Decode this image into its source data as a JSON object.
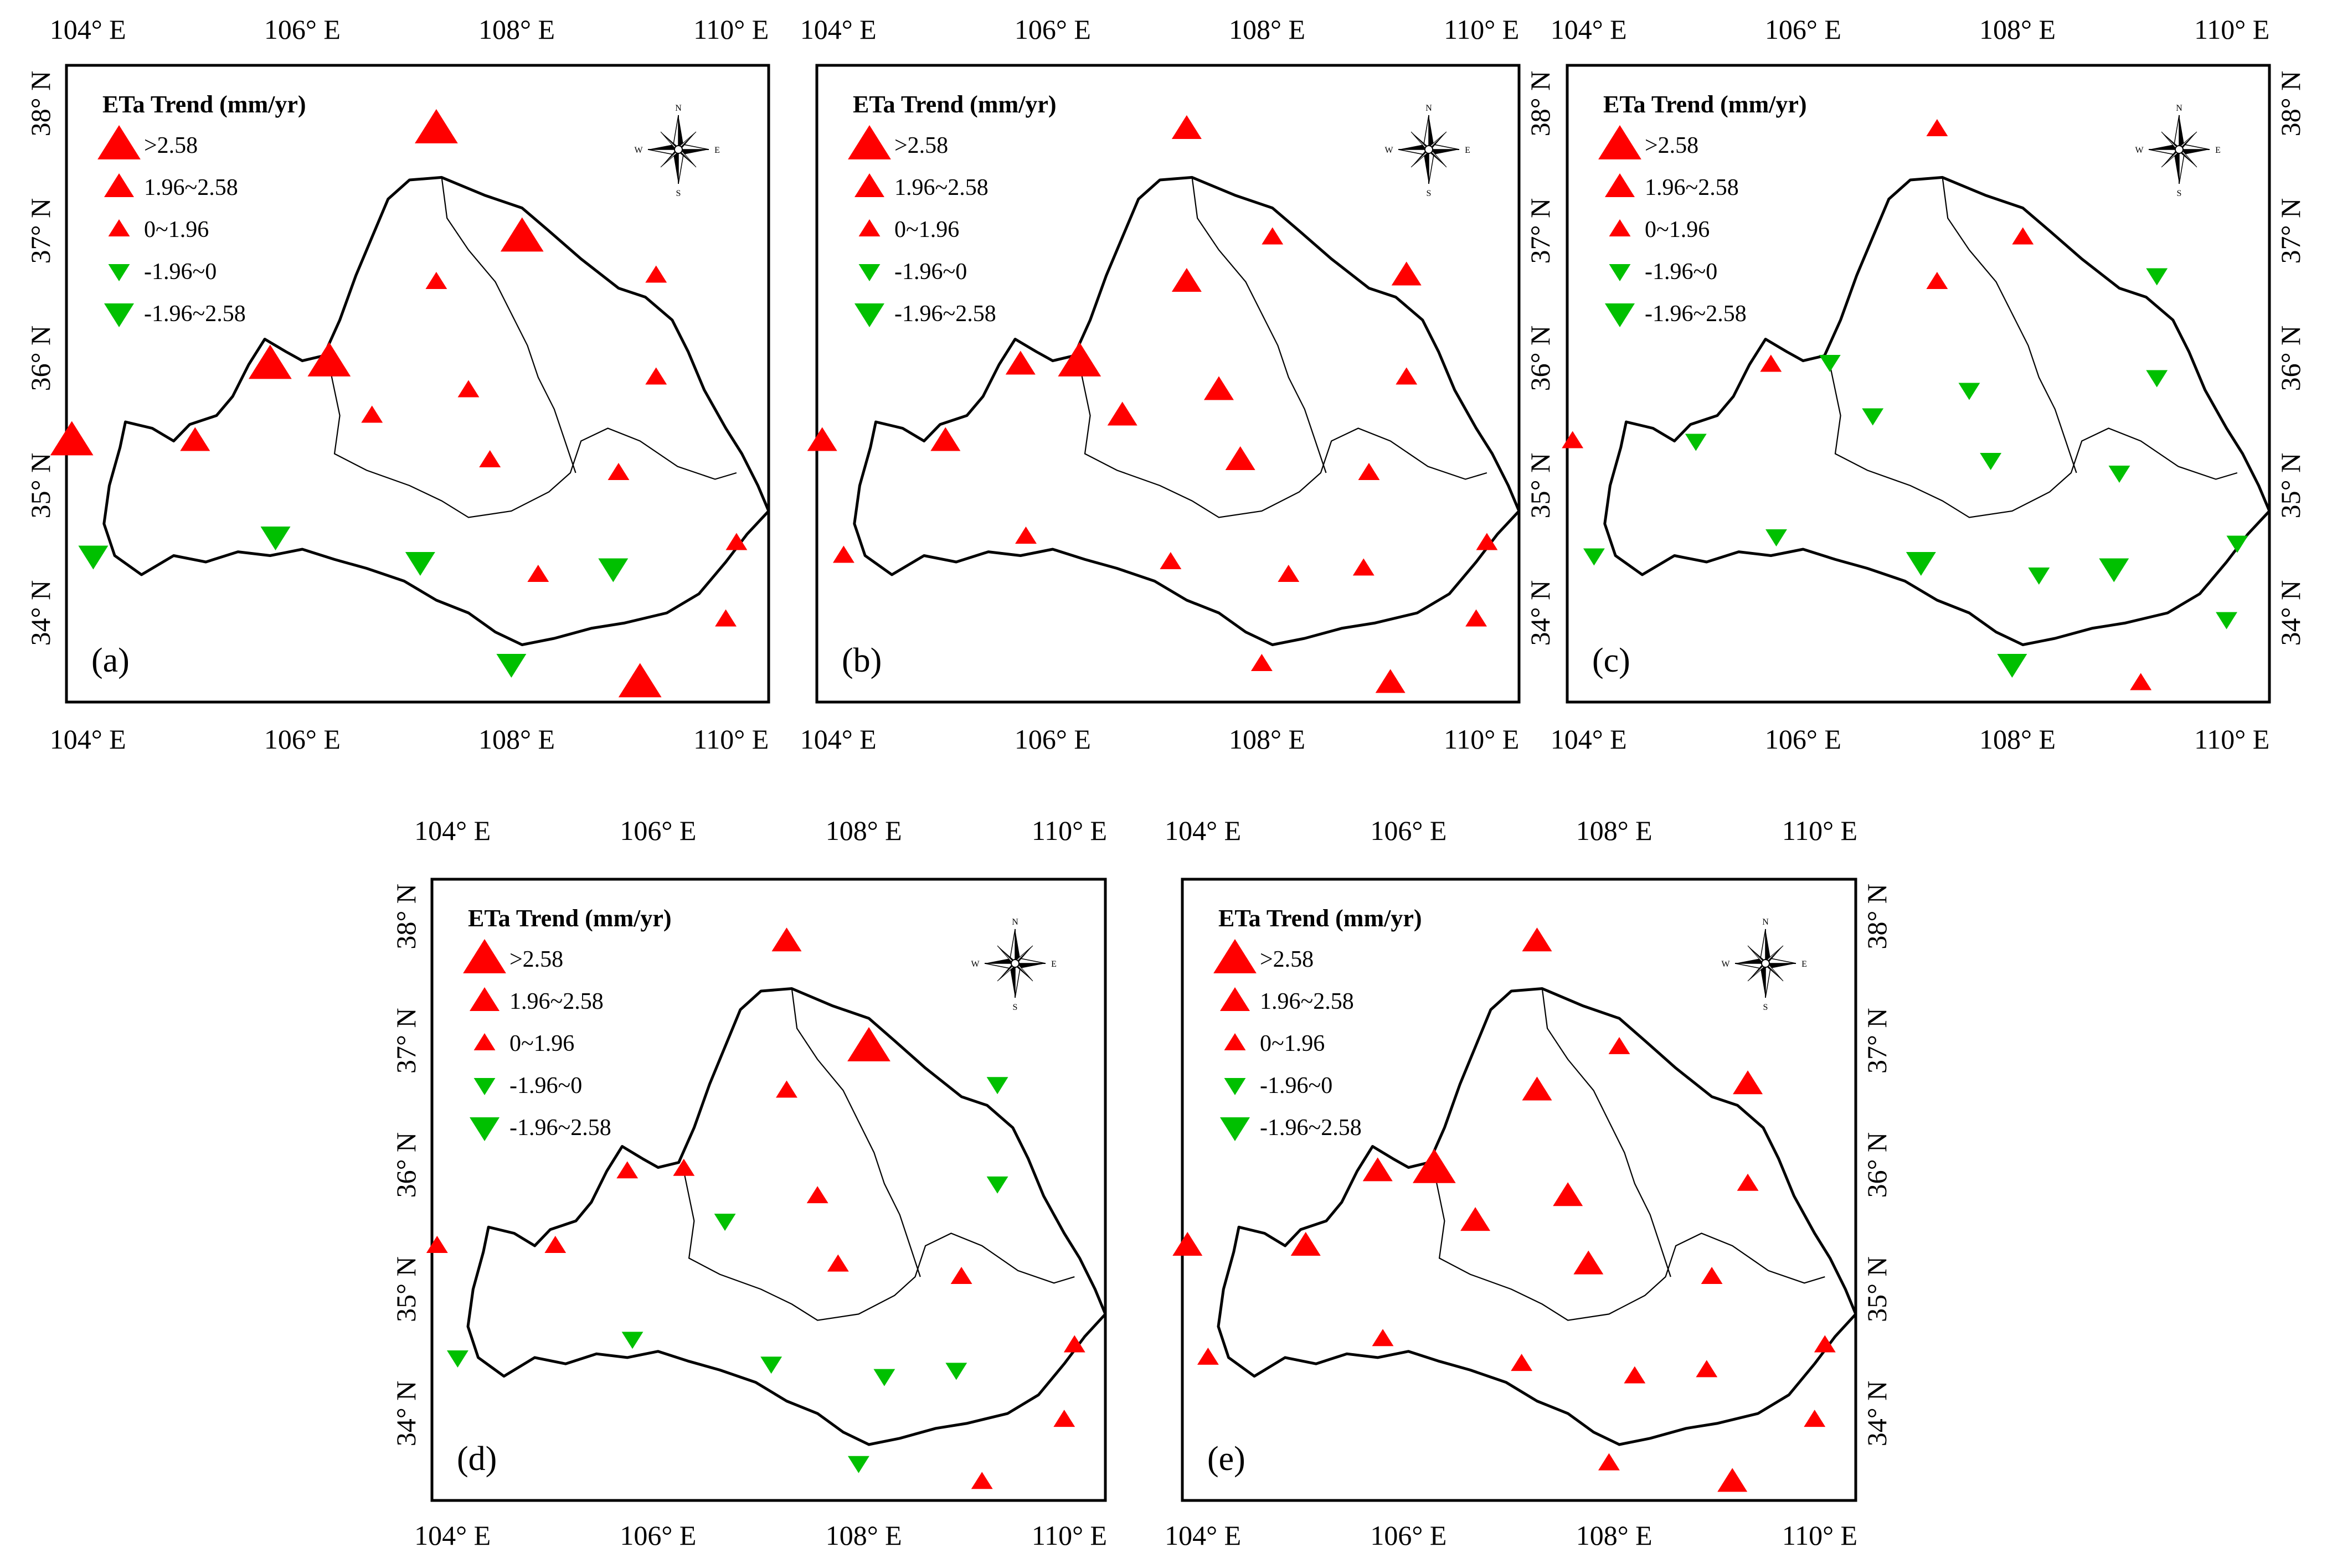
{
  "panel_labels": [
    "(a)",
    "(b)",
    "(c)",
    "(d)",
    "(e)"
  ],
  "lon_ticks": [
    "104° E",
    "106° E",
    "108° E",
    "110° E"
  ],
  "lat_ticks": [
    "38° N",
    "37° N",
    "36° N",
    "35° N",
    "34° N"
  ],
  "legend": {
    "title": "ETa Trend (mm/yr)",
    "classes": [
      {
        "label": ">2.58",
        "direction": "up",
        "size": "large",
        "color": "#ff0000"
      },
      {
        "label": "1.96~2.58",
        "direction": "up",
        "size": "medium",
        "color": "#ff0000"
      },
      {
        "label": "0~1.96",
        "direction": "up",
        "size": "small",
        "color": "#ff0000"
      },
      {
        "label": "-1.96~0",
        "direction": "down",
        "size": "small",
        "color": "#00c000"
      },
      {
        "label": "-1.96~2.58",
        "direction": "down",
        "size": "medium",
        "color": "#00c000"
      }
    ]
  },
  "compass": {
    "north": "N",
    "south": "S",
    "east": "E",
    "west": "W"
  },
  "colors": {
    "increase": "#ff0000",
    "decrease": "#00c000",
    "outline": "#000000"
  },
  "stations": [
    {
      "lon": 103.85,
      "lat": 35.35
    },
    {
      "lon": 104.05,
      "lat": 34.45
    },
    {
      "lon": 105.0,
      "lat": 35.35
    },
    {
      "lon": 105.7,
      "lat": 35.95
    },
    {
      "lon": 105.75,
      "lat": 34.6
    },
    {
      "lon": 106.25,
      "lat": 35.97
    },
    {
      "lon": 106.65,
      "lat": 35.55
    },
    {
      "lon": 107.1,
      "lat": 34.4
    },
    {
      "lon": 107.25,
      "lat": 37.8
    },
    {
      "lon": 107.25,
      "lat": 36.6
    },
    {
      "lon": 107.55,
      "lat": 35.75
    },
    {
      "lon": 107.75,
      "lat": 35.2
    },
    {
      "lon": 107.95,
      "lat": 33.6
    },
    {
      "lon": 108.05,
      "lat": 36.95
    },
    {
      "lon": 108.2,
      "lat": 34.3
    },
    {
      "lon": 108.9,
      "lat": 34.35
    },
    {
      "lon": 108.95,
      "lat": 35.1
    },
    {
      "lon": 109.15,
      "lat": 33.45
    },
    {
      "lon": 109.3,
      "lat": 36.65
    },
    {
      "lon": 109.3,
      "lat": 35.85
    },
    {
      "lon": 109.95,
      "lat": 33.95
    },
    {
      "lon": 110.05,
      "lat": 34.55
    }
  ],
  "panels": [
    {
      "label": "(a)",
      "classes": [
        0,
        4,
        1,
        0,
        4,
        0,
        2,
        4,
        0,
        2,
        2,
        2,
        4,
        0,
        2,
        4,
        2,
        0,
        2,
        2,
        2,
        2
      ]
    },
    {
      "label": "(b)",
      "classes": [
        1,
        2,
        1,
        1,
        2,
        0,
        1,
        2,
        1,
        1,
        1,
        1,
        2,
        2,
        2,
        2,
        2,
        1,
        1,
        2,
        2,
        2
      ]
    },
    {
      "label": "(c)",
      "classes": [
        2,
        3,
        3,
        2,
        3,
        3,
        3,
        4,
        2,
        2,
        3,
        3,
        4,
        2,
        3,
        4,
        3,
        2,
        3,
        3,
        3,
        3
      ]
    },
    {
      "label": "(d)",
      "classes": [
        2,
        3,
        2,
        2,
        3,
        2,
        3,
        3,
        1,
        2,
        2,
        2,
        3,
        0,
        3,
        3,
        2,
        2,
        3,
        3,
        2,
        2
      ]
    },
    {
      "label": "(e)",
      "classes": [
        1,
        2,
        1,
        1,
        2,
        0,
        1,
        2,
        1,
        1,
        1,
        1,
        2,
        2,
        2,
        2,
        2,
        1,
        1,
        2,
        2,
        2
      ]
    }
  ]
}
